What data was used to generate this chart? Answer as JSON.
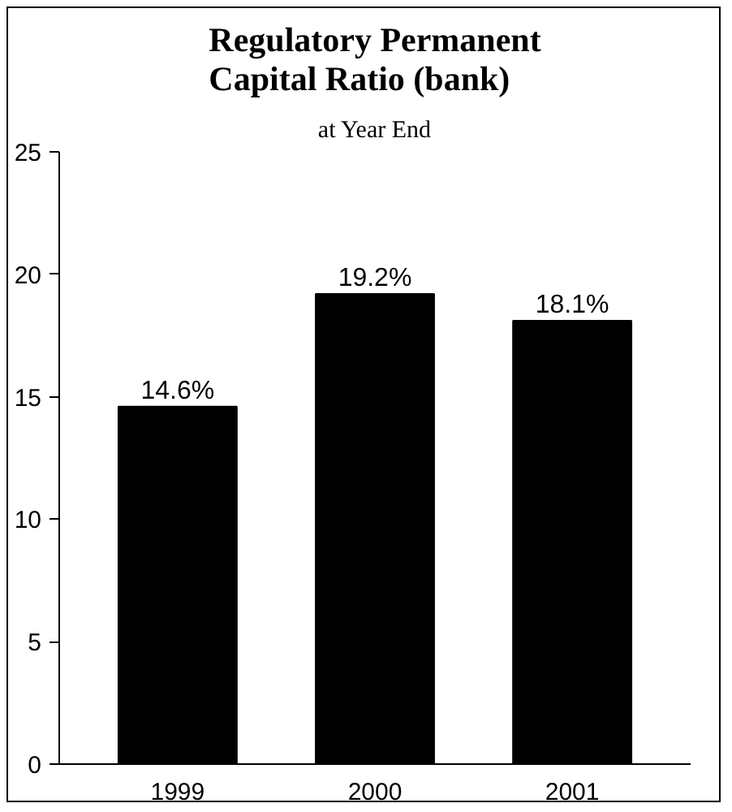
{
  "chart_data": {
    "type": "bar",
    "title": "Regulatory Permanent Capital Ratio (bank)",
    "subtitle": "at Year End",
    "categories": [
      "1999",
      "2000",
      "2001"
    ],
    "values": [
      14.6,
      19.2,
      18.1
    ],
    "color": "#000000",
    "value_labels": [
      "14.6%",
      "19.2%",
      "18.1%"
    ],
    "ylim": [
      0,
      25
    ],
    "yticks": [
      0,
      5,
      10,
      15,
      20,
      25
    ],
    "grid": false
  }
}
